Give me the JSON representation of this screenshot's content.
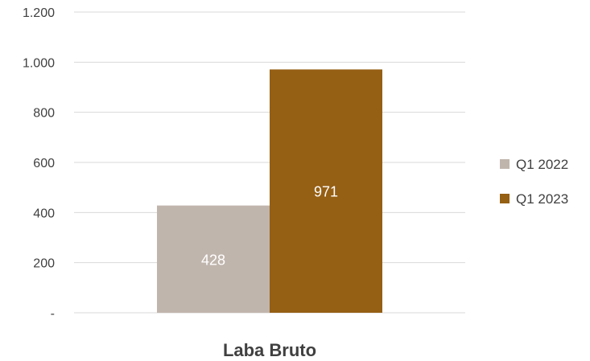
{
  "chart_data": {
    "type": "bar",
    "categories": [
      "Laba Bruto"
    ],
    "series": [
      {
        "name": "Q1 2022",
        "values": [
          428
        ],
        "color": "#c0b5ad"
      },
      {
        "name": "Q1 2023",
        "values": [
          971
        ],
        "color": "#955f14"
      }
    ],
    "ylim": [
      0,
      1200
    ],
    "yticks": [
      0,
      200,
      400,
      600,
      800,
      1000,
      1200
    ],
    "ytick_labels": [
      "-",
      "200",
      "400",
      "600",
      "800",
      "1.000",
      "1.200"
    ],
    "data_labels": [
      "428",
      "971"
    ],
    "grid": true,
    "legend": "right"
  }
}
